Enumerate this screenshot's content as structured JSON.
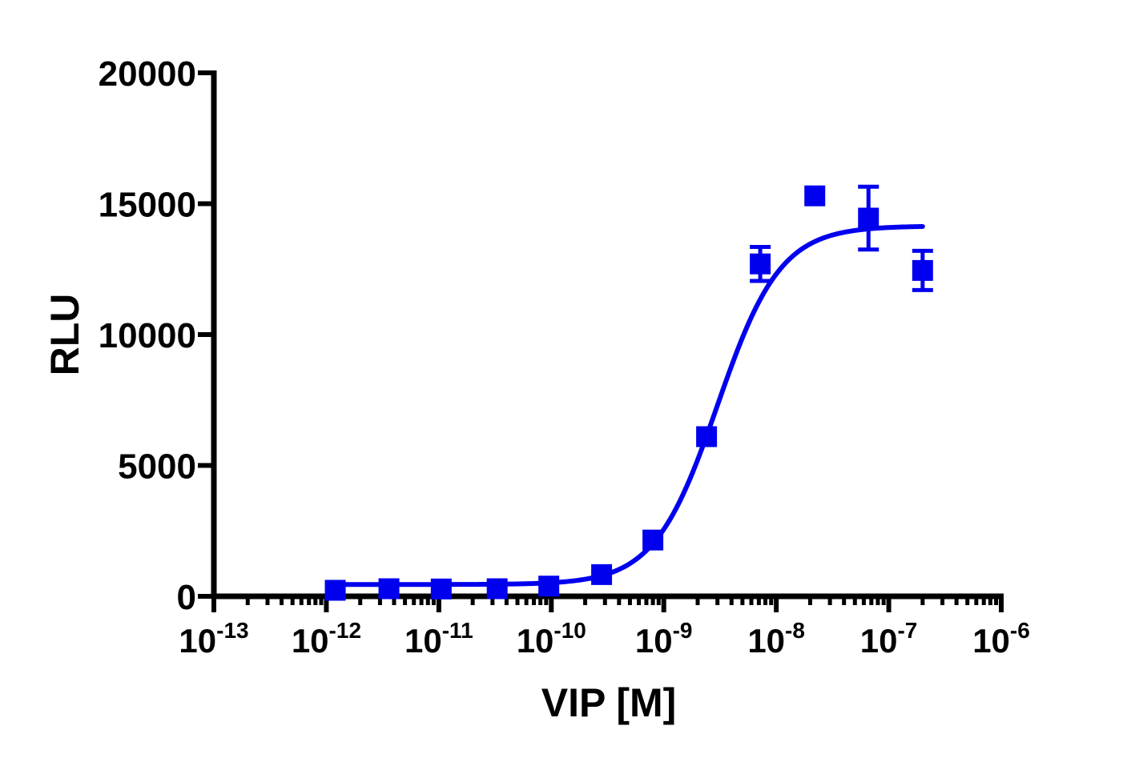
{
  "chart_data": {
    "type": "scatter",
    "xlabel": "VIP [M]",
    "ylabel": "RLU",
    "x_scale": "log",
    "xlim": [
      1e-13,
      1e-06
    ],
    "ylim": [
      0,
      20000
    ],
    "x_ticks": [
      {
        "value": 1e-13,
        "base": "10",
        "exp": "-13"
      },
      {
        "value": 1e-12,
        "base": "10",
        "exp": "-12"
      },
      {
        "value": 1e-11,
        "base": "10",
        "exp": "-11"
      },
      {
        "value": 1e-10,
        "base": "10",
        "exp": "-10"
      },
      {
        "value": 1e-09,
        "base": "10",
        "exp": "-9"
      },
      {
        "value": 1e-08,
        "base": "10",
        "exp": "-8"
      },
      {
        "value": 1e-07,
        "base": "10",
        "exp": "-7"
      },
      {
        "value": 1e-06,
        "base": "10",
        "exp": "-6"
      }
    ],
    "y_ticks": [
      {
        "value": 0,
        "label": "0"
      },
      {
        "value": 5000,
        "label": "5000"
      },
      {
        "value": 10000,
        "label": "10000"
      },
      {
        "value": 15000,
        "label": "15000"
      },
      {
        "value": 20000,
        "label": "20000"
      }
    ],
    "grid": false,
    "series_color": "#0000ee",
    "series": [
      {
        "marker": "square",
        "points": [
          {
            "x": 1.2e-12,
            "y": 230,
            "err": 0
          },
          {
            "x": 3.6e-12,
            "y": 290,
            "err": 0
          },
          {
            "x": 1.05e-11,
            "y": 280,
            "err": 0
          },
          {
            "x": 3.3e-11,
            "y": 290,
            "err": 0
          },
          {
            "x": 9.5e-11,
            "y": 390,
            "err": 0
          },
          {
            "x": 2.8e-10,
            "y": 830,
            "err": 0
          },
          {
            "x": 8e-10,
            "y": 2150,
            "err": 0
          },
          {
            "x": 2.4e-09,
            "y": 6100,
            "err": 0
          },
          {
            "x": 7.2e-09,
            "y": 12700,
            "err": 650
          },
          {
            "x": 2.2e-08,
            "y": 15300,
            "err": 0
          },
          {
            "x": 6.6e-08,
            "y": 14450,
            "err": 1200
          },
          {
            "x": 2e-07,
            "y": 12450,
            "err": 750
          }
        ],
        "fit": {
          "model": "sigmoidal dose-response",
          "bottom": 450,
          "top": 14150,
          "ec50": 3e-09,
          "hill": 1.55,
          "x_range": [
            1.2e-12,
            2e-07
          ]
        }
      }
    ]
  }
}
